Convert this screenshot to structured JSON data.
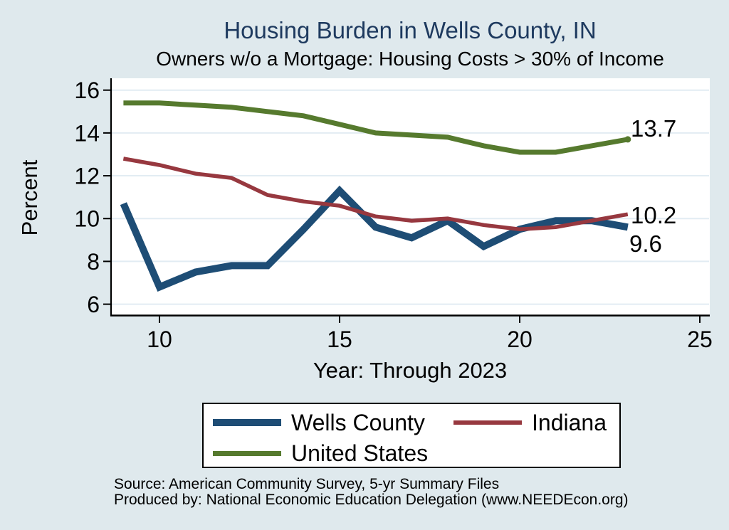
{
  "header": {
    "title": "Housing Burden in Wells County, IN",
    "subtitle": "Owners w/o a Mortgage: Housing Costs > 30% of Income"
  },
  "chart_data": {
    "type": "line",
    "x": [
      9,
      10,
      11,
      12,
      13,
      14,
      15,
      16,
      17,
      18,
      19,
      20,
      21,
      22,
      23
    ],
    "series": [
      {
        "name": "Wells County",
        "color": "#1e4d75",
        "width": 10,
        "values": [
          10.7,
          6.8,
          7.5,
          7.8,
          7.8,
          9.5,
          11.3,
          9.6,
          9.1,
          9.9,
          8.7,
          9.5,
          9.9,
          9.9,
          9.6
        ],
        "end_label": "9.6",
        "end_marker": false
      },
      {
        "name": "Indiana",
        "color": "#97383f",
        "width": 5.5,
        "values": [
          12.8,
          12.5,
          12.1,
          11.9,
          11.1,
          10.8,
          10.6,
          10.1,
          9.9,
          10.0,
          9.7,
          9.5,
          9.6,
          9.9,
          10.2
        ],
        "end_label": "10.2",
        "end_marker": false
      },
      {
        "name": "United States",
        "color": "#567a2e",
        "width": 7,
        "values": [
          15.4,
          15.4,
          15.3,
          15.2,
          15.0,
          14.8,
          14.4,
          14.0,
          13.9,
          13.8,
          13.4,
          13.1,
          13.1,
          13.4,
          13.7
        ],
        "end_label": "13.7",
        "end_marker": true
      }
    ],
    "title": "Housing Burden in Wells County, IN",
    "subtitle": "Owners w/o a Mortgage: Housing Costs > 30% of Income",
    "xlabel": "Year: Through 2023",
    "ylabel": "Percent",
    "x_ticks": [
      10,
      15,
      20,
      25
    ],
    "y_ticks": [
      6,
      8,
      10,
      12,
      14,
      16
    ],
    "xlim": [
      8.64,
      25.27
    ],
    "ylim": [
      5.49,
      16.55
    ],
    "grid": true,
    "legend_position": "bottom"
  },
  "palette": {
    "page_background": "#dfe9ed",
    "plot_background": "#ffffff",
    "gridline": "#e2ecf3",
    "axis": "#000000",
    "title_color": "#1e3a5f"
  },
  "footer": {
    "source": "Source: American Community Survey, 5-yr Summary Files",
    "produced_by": "Produced by: National Economic Education Delegation (www.NEEDEcon.org)"
  }
}
